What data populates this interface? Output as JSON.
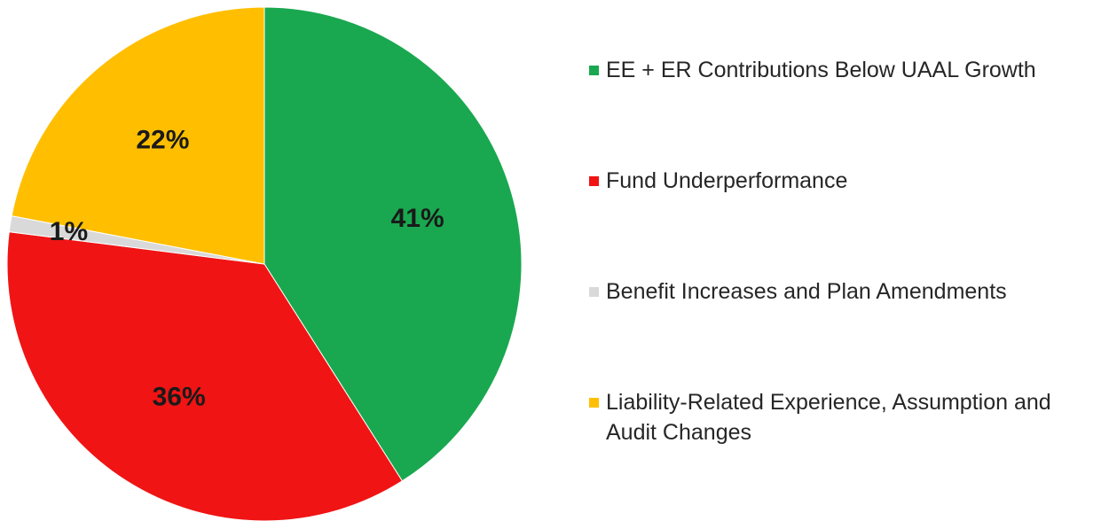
{
  "chart_data": {
    "type": "pie",
    "categories": [
      "EE + ER Contributions Below UAAL Growth",
      "Fund Underperformance",
      "Benefit Increases and Plan Amendments",
      "Liability-Related Experience, Assumption and Audit Changes"
    ],
    "values": [
      41,
      36,
      1,
      22
    ],
    "value_labels": [
      "41%",
      "36%",
      "1%",
      "22%"
    ],
    "colors": [
      "#19a84f",
      "#f01414",
      "#d9d9d9",
      "#ffbf00"
    ]
  }
}
